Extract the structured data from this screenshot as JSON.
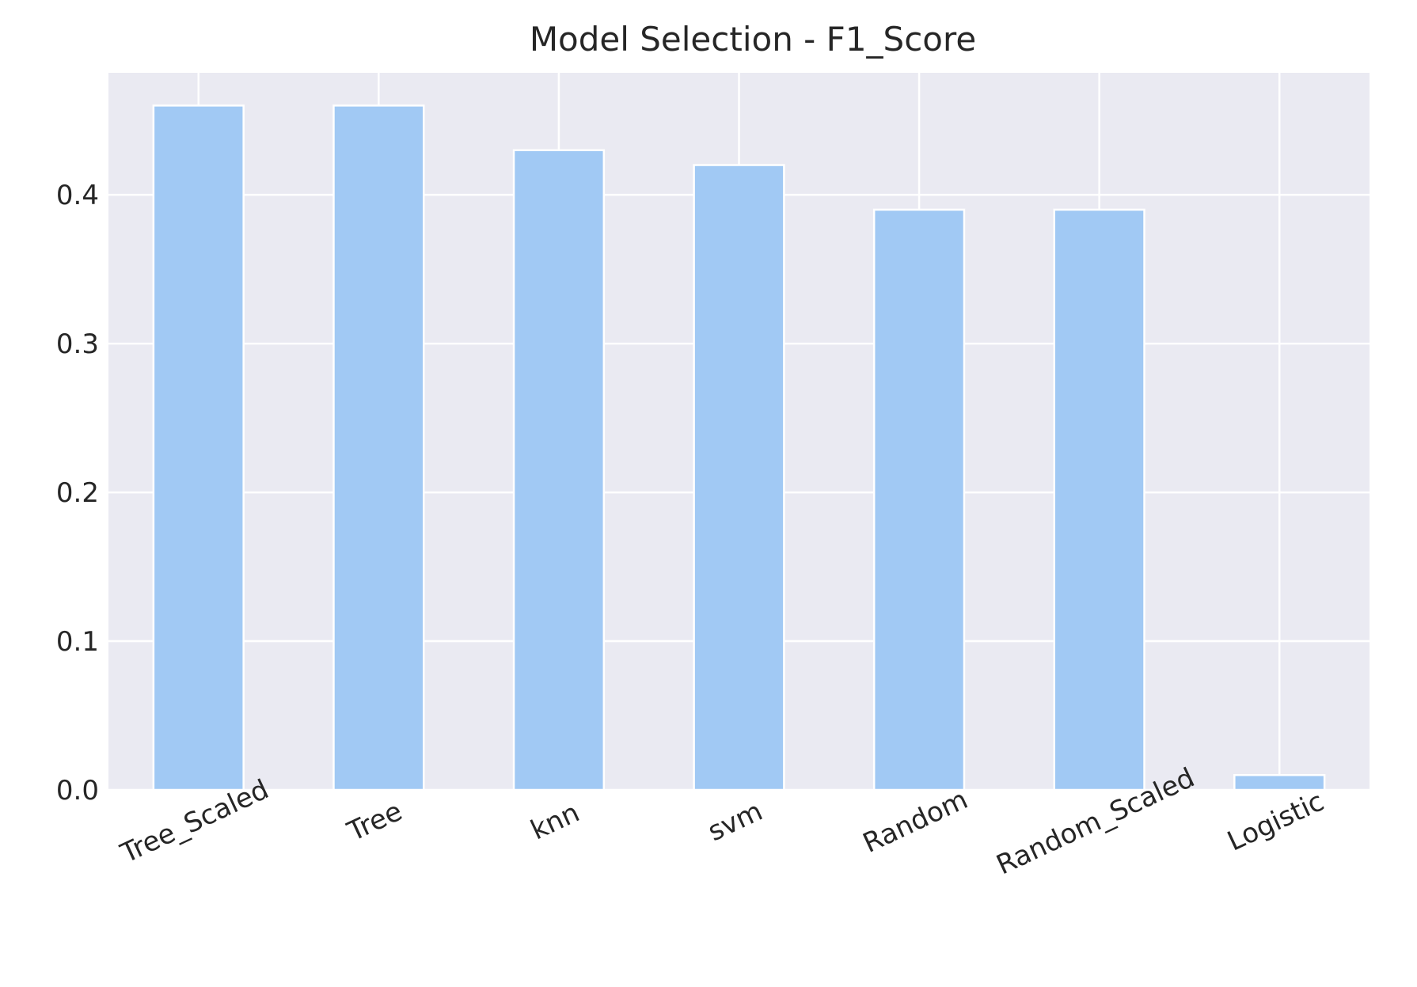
{
  "chart_data": {
    "type": "bar",
    "title": "Model Selection - F1_Score",
    "xlabel": "",
    "ylabel": "",
    "categories": [
      "Tree_Scaled",
      "Tree",
      "knn",
      "svm",
      "Random",
      "Random_Scaled",
      "Logistic"
    ],
    "values": [
      0.46,
      0.46,
      0.43,
      0.42,
      0.39,
      0.39,
      0.01
    ],
    "ylim": [
      0,
      0.482
    ],
    "yticks": [
      0.0,
      0.1,
      0.2,
      0.3,
      0.4
    ],
    "ytick_labels": [
      "0.0",
      "0.1",
      "0.2",
      "0.3",
      "0.4"
    ],
    "x_tick_rotation_deg": 25,
    "grid": true,
    "legend": "none",
    "colors": {
      "bar": "#a1c9f4",
      "plot_background": "#eaeaf2",
      "grid": "#ffffff",
      "text": "#262626"
    }
  }
}
